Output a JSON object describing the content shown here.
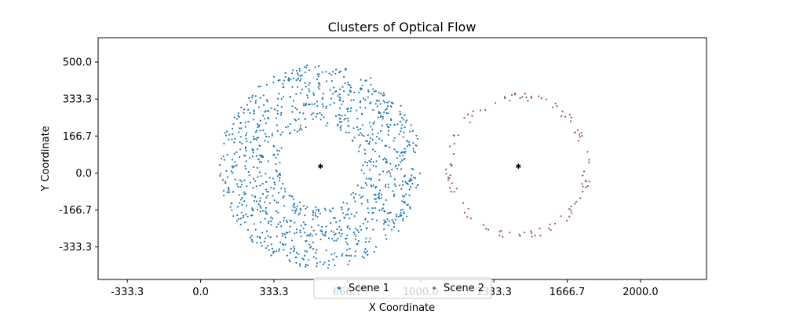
{
  "chart_data": {
    "type": "scatter",
    "title": "Clusters of Optical Flow",
    "xlabel": "X Coordinate",
    "ylabel": "Y Coordinate",
    "xlim": [
      -466,
      2300
    ],
    "ylim": [
      -480,
      610
    ],
    "xticks": [
      -333.3,
      0.0,
      333.3,
      666.7,
      1000.0,
      1333.3,
      1666.7,
      2000.0
    ],
    "xtick_labels": [
      "-333.3",
      "0.0",
      "333.3",
      "666.7",
      "1000.0",
      "1333.3",
      "1666.7",
      "2000.0"
    ],
    "yticks": [
      500.0,
      333.3,
      166.7,
      0.0,
      -166.7,
      -333.3
    ],
    "ytick_labels": [
      "500.0",
      "333.3",
      "166.7",
      "0.0",
      "-166.7",
      "-333.3"
    ],
    "grid": false,
    "legend_placement": "lower-center",
    "series": [
      {
        "name": "Scene 1",
        "color": "#1f77b4",
        "center": [
          545,
          30
        ],
        "inner_radius": 185,
        "outer_radius": 460,
        "point_count": 1100
      },
      {
        "name": "Scene 2",
        "color": "#8c564b",
        "center": [
          1445,
          30
        ],
        "inner_radius": 295,
        "outer_radius": 330,
        "point_count": 110
      }
    ],
    "centers": {
      "color": "#000000",
      "points": [
        [
          545,
          30
        ],
        [
          1445,
          30
        ]
      ]
    }
  }
}
